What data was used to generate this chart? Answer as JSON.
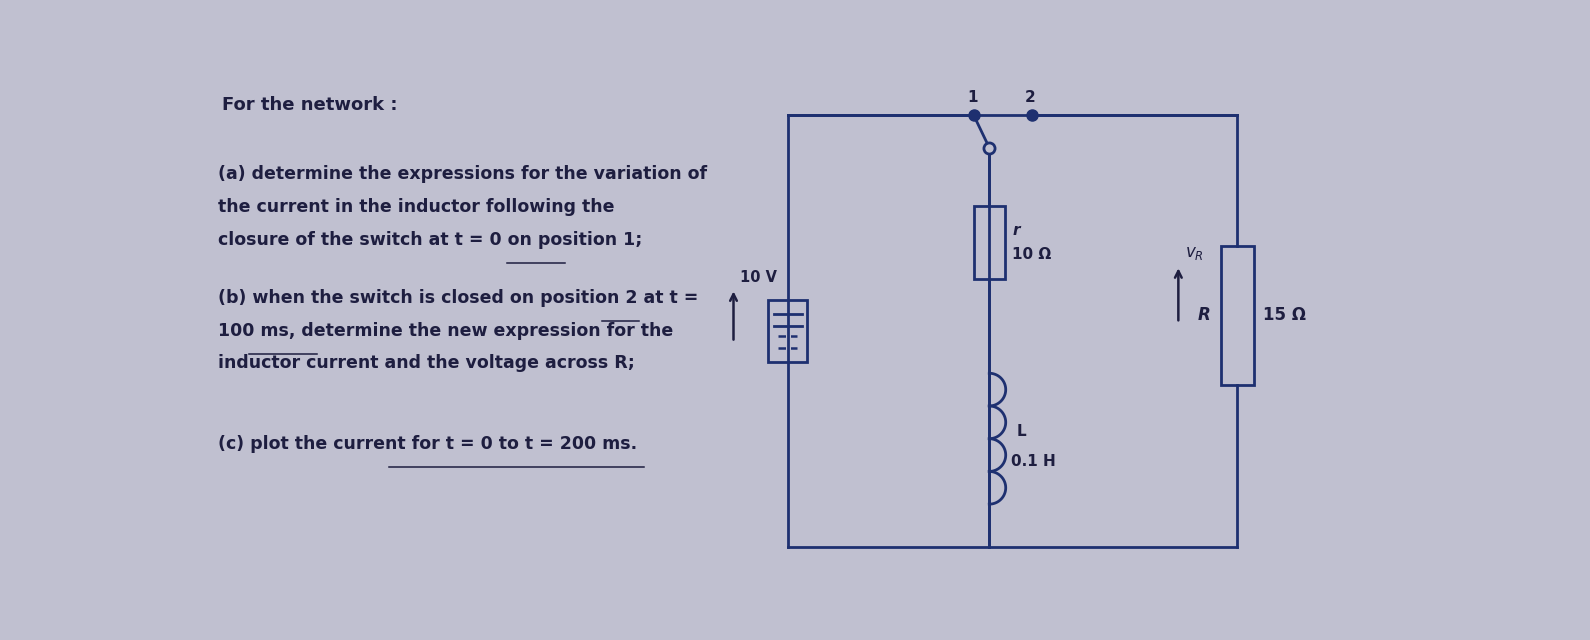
{
  "bg_color": "#c0c0d0",
  "text_color": "#1e1e40",
  "circuit_color": "#1e3070",
  "title": "For the network :",
  "line_a1": "(a) determine the expressions for the variation of",
  "line_a2": "    the current in the inductor following the",
  "line_a3": "    closure of the switch at t = 0 on position 1;",
  "line_b1": "(b) when the switch is closed on position 2 at t =",
  "line_b2": "    100 ms, determine the new expression for the",
  "line_b3": "    inductor current and the voltage across R;",
  "line_c": "(c) plot the current for t = 0 to t = 200 ms.",
  "voltage_label": "10 V",
  "r_label": "r",
  "r_value": "10 Ω",
  "L_label": "L",
  "L_value": "0.1 H",
  "R_label": "R",
  "R_value": "15 Ω",
  "vR_label": "v",
  "vR_sub": "R",
  "pos1_label": "1",
  "pos2_label": "2",
  "fig_width": 15.9,
  "fig_height": 6.4,
  "dpi": 100
}
